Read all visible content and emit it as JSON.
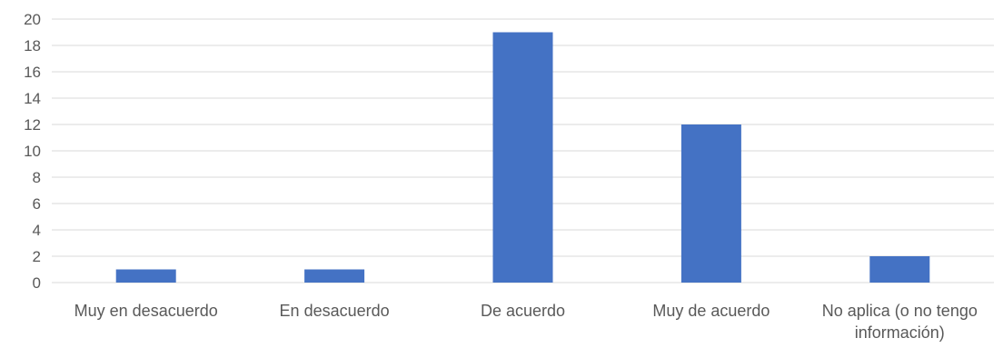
{
  "chart_data": {
    "type": "bar",
    "categories": [
      [
        "Muy en desacuerdo"
      ],
      [
        "En desacuerdo"
      ],
      [
        "De acuerdo"
      ],
      [
        "Muy de acuerdo"
      ],
      [
        "No aplica (o no tengo",
        "información)"
      ]
    ],
    "values": [
      1,
      1,
      19,
      12,
      2
    ],
    "ylim": [
      0,
      20
    ],
    "ytick_step": 2,
    "grid": true,
    "bar_color": "#4472C4",
    "grid_color": "#D9D9D9",
    "text_color": "#595959"
  }
}
